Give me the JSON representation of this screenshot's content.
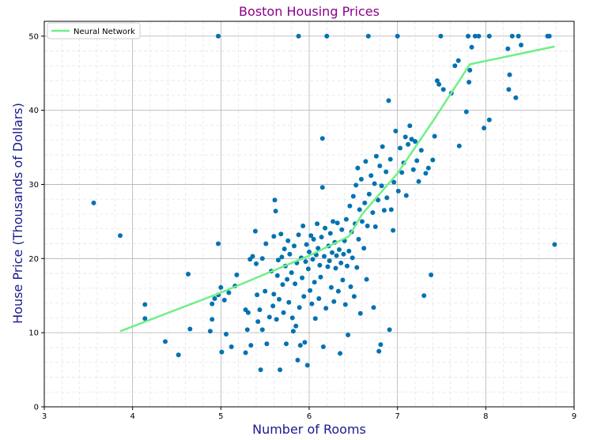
{
  "chart_data": {
    "type": "scatter",
    "title": "Boston Housing Prices",
    "xlabel": "Number of Rooms",
    "ylabel": "House Price (Thousands of Dollars)",
    "xlim": [
      3,
      9
    ],
    "ylim": [
      0,
      52
    ],
    "x_ticks": [
      3,
      4,
      5,
      6,
      7,
      8,
      9
    ],
    "y_ticks": [
      0,
      10,
      20,
      30,
      40,
      50
    ],
    "grid": true,
    "legend_placement": "top-left",
    "colors": {
      "points": "#0072b2",
      "line": "#70ef85",
      "title": "#8b008b",
      "axis_label": "#1a1a8c"
    },
    "series": [
      {
        "type": "scatter",
        "points": [
          [
            3.56,
            27.5
          ],
          [
            3.86,
            23.1
          ],
          [
            4.14,
            13.8
          ],
          [
            4.14,
            11.9
          ],
          [
            4.37,
            8.8
          ],
          [
            4.52,
            7.0
          ],
          [
            4.63,
            17.9
          ],
          [
            4.65,
            10.5
          ],
          [
            4.88,
            10.2
          ],
          [
            4.9,
            13.9
          ],
          [
            4.9,
            11.8
          ],
          [
            4.93,
            14.6
          ],
          [
            4.97,
            15.1
          ],
          [
            4.97,
            22.0
          ],
          [
            4.97,
            50.0
          ],
          [
            5.0,
            16.1
          ],
          [
            5.01,
            7.4
          ],
          [
            5.04,
            14.4
          ],
          [
            5.06,
            9.8
          ],
          [
            5.09,
            15.4
          ],
          [
            5.12,
            8.1
          ],
          [
            5.16,
            16.3
          ],
          [
            5.18,
            17.8
          ],
          [
            5.28,
            7.3
          ],
          [
            5.28,
            13.1
          ],
          [
            5.3,
            10.4
          ],
          [
            5.31,
            12.7
          ],
          [
            5.33,
            19.9
          ],
          [
            5.34,
            8.3
          ],
          [
            5.36,
            20.3
          ],
          [
            5.39,
            23.7
          ],
          [
            5.4,
            19.3
          ],
          [
            5.41,
            15.1
          ],
          [
            5.42,
            11.5
          ],
          [
            5.44,
            13.1
          ],
          [
            5.45,
            5.0
          ],
          [
            5.47,
            10.4
          ],
          [
            5.47,
            20.0
          ],
          [
            5.5,
            15.6
          ],
          [
            5.51,
            22.0
          ],
          [
            5.52,
            8.5
          ],
          [
            5.55,
            12.1
          ],
          [
            5.57,
            18.3
          ],
          [
            5.59,
            13.6
          ],
          [
            5.6,
            15.2
          ],
          [
            5.6,
            23.0
          ],
          [
            5.61,
            27.9
          ],
          [
            5.62,
            26.4
          ],
          [
            5.63,
            11.8
          ],
          [
            5.64,
            17.7
          ],
          [
            5.65,
            19.8
          ],
          [
            5.66,
            14.5
          ],
          [
            5.67,
            5.0
          ],
          [
            5.68,
            23.3
          ],
          [
            5.69,
            20.2
          ],
          [
            5.7,
            16.5
          ],
          [
            5.71,
            12.7
          ],
          [
            5.72,
            21.3
          ],
          [
            5.73,
            19.0
          ],
          [
            5.74,
            8.5
          ],
          [
            5.75,
            17.2
          ],
          [
            5.76,
            22.4
          ],
          [
            5.77,
            14.1
          ],
          [
            5.78,
            20.6
          ],
          [
            5.8,
            18.1
          ],
          [
            5.81,
            12.0
          ],
          [
            5.82,
            10.2
          ],
          [
            5.83,
            21.7
          ],
          [
            5.84,
            16.6
          ],
          [
            5.85,
            10.9
          ],
          [
            5.86,
            19.4
          ],
          [
            5.87,
            6.3
          ],
          [
            5.88,
            23.2
          ],
          [
            5.88,
            50.0
          ],
          [
            5.89,
            13.4
          ],
          [
            5.9,
            8.3
          ],
          [
            5.91,
            20.1
          ],
          [
            5.92,
            17.4
          ],
          [
            5.93,
            24.4
          ],
          [
            5.94,
            14.9
          ],
          [
            5.95,
            8.7
          ],
          [
            5.96,
            19.6
          ],
          [
            5.97,
            21.9
          ],
          [
            5.98,
            5.6
          ],
          [
            5.99,
            18.6
          ],
          [
            6.0,
            20.9
          ],
          [
            6.01,
            15.7
          ],
          [
            6.02,
            23.1
          ],
          [
            6.03,
            13.9
          ],
          [
            6.04,
            19.9
          ],
          [
            6.05,
            22.6
          ],
          [
            6.06,
            16.8
          ],
          [
            6.07,
            11.9
          ],
          [
            6.08,
            20.5
          ],
          [
            6.09,
            24.7
          ],
          [
            6.1,
            21.4
          ],
          [
            6.11,
            14.6
          ],
          [
            6.12,
            19.1
          ],
          [
            6.13,
            17.5
          ],
          [
            6.14,
            22.9
          ],
          [
            6.15,
            36.2
          ],
          [
            6.15,
            29.6
          ],
          [
            6.16,
            8.1
          ],
          [
            6.17,
            20.3
          ],
          [
            6.18,
            24.1
          ],
          [
            6.19,
            13.3
          ],
          [
            6.2,
            50.0
          ],
          [
            6.21,
            18.9
          ],
          [
            6.22,
            21.7
          ],
          [
            6.23,
            19.7
          ],
          [
            6.24,
            23.4
          ],
          [
            6.25,
            16.1
          ],
          [
            6.26,
            20.8
          ],
          [
            6.27,
            25.0
          ],
          [
            6.28,
            14.2
          ],
          [
            6.29,
            22.2
          ],
          [
            6.3,
            18.7
          ],
          [
            6.31,
            20.4
          ],
          [
            6.32,
            24.8
          ],
          [
            6.33,
            15.6
          ],
          [
            6.34,
            21.2
          ],
          [
            6.35,
            7.2
          ],
          [
            6.36,
            19.4
          ],
          [
            6.37,
            23.9
          ],
          [
            6.38,
            17.1
          ],
          [
            6.39,
            20.6
          ],
          [
            6.4,
            22.4
          ],
          [
            6.41,
            13.8
          ],
          [
            6.42,
            25.3
          ],
          [
            6.43,
            19.0
          ],
          [
            6.44,
            9.7
          ],
          [
            6.45,
            21.0
          ],
          [
            6.46,
            27.1
          ],
          [
            6.47,
            16.2
          ],
          [
            6.48,
            23.6
          ],
          [
            6.49,
            20.1
          ],
          [
            6.5,
            28.4
          ],
          [
            6.51,
            14.9
          ],
          [
            6.52,
            24.7
          ],
          [
            6.53,
            29.9
          ],
          [
            6.54,
            18.8
          ],
          [
            6.55,
            32.2
          ],
          [
            6.56,
            22.6
          ],
          [
            6.57,
            26.6
          ],
          [
            6.58,
            12.6
          ],
          [
            6.59,
            30.7
          ],
          [
            6.6,
            25.0
          ],
          [
            6.62,
            21.4
          ],
          [
            6.63,
            27.5
          ],
          [
            6.64,
            33.1
          ],
          [
            6.65,
            17.2
          ],
          [
            6.66,
            24.4
          ],
          [
            6.67,
            50.0
          ],
          [
            6.68,
            28.7
          ],
          [
            6.7,
            31.2
          ],
          [
            6.72,
            26.2
          ],
          [
            6.73,
            13.4
          ],
          [
            6.74,
            30.1
          ],
          [
            6.75,
            24.3
          ],
          [
            6.76,
            33.8
          ],
          [
            6.78,
            27.9
          ],
          [
            6.79,
            7.5
          ],
          [
            6.8,
            32.5
          ],
          [
            6.81,
            8.4
          ],
          [
            6.82,
            29.8
          ],
          [
            6.83,
            35.1
          ],
          [
            6.85,
            26.5
          ],
          [
            6.87,
            31.7
          ],
          [
            6.88,
            28.2
          ],
          [
            6.9,
            41.3
          ],
          [
            6.91,
            10.4
          ],
          [
            6.92,
            33.4
          ],
          [
            6.93,
            26.6
          ],
          [
            6.95,
            23.8
          ],
          [
            6.96,
            30.3
          ],
          [
            6.98,
            37.2
          ],
          [
            7.0,
            50.0
          ],
          [
            7.01,
            29.1
          ],
          [
            7.03,
            34.9
          ],
          [
            7.05,
            31.6
          ],
          [
            7.07,
            32.9
          ],
          [
            7.09,
            36.4
          ],
          [
            7.1,
            28.5
          ],
          [
            7.12,
            35.4
          ],
          [
            7.14,
            37.9
          ],
          [
            7.16,
            36.1
          ],
          [
            7.18,
            32.0
          ],
          [
            7.2,
            35.8
          ],
          [
            7.22,
            33.2
          ],
          [
            7.24,
            30.4
          ],
          [
            7.27,
            34.6
          ],
          [
            7.3,
            15.0
          ],
          [
            7.32,
            31.5
          ],
          [
            7.35,
            32.2
          ],
          [
            7.38,
            17.8
          ],
          [
            7.4,
            33.3
          ],
          [
            7.42,
            36.5
          ],
          [
            7.45,
            44.0
          ],
          [
            7.47,
            43.5
          ],
          [
            7.49,
            50.0
          ],
          [
            7.52,
            42.8
          ],
          [
            7.61,
            42.3
          ],
          [
            7.65,
            46.0
          ],
          [
            7.69,
            46.7
          ],
          [
            7.7,
            35.2
          ],
          [
            7.78,
            39.8
          ],
          [
            7.8,
            50.0
          ],
          [
            7.81,
            43.8
          ],
          [
            7.82,
            45.4
          ],
          [
            7.84,
            48.5
          ],
          [
            7.88,
            50.0
          ],
          [
            7.92,
            50.0
          ],
          [
            7.98,
            37.6
          ],
          [
            8.04,
            38.7
          ],
          [
            8.04,
            50.0
          ],
          [
            8.25,
            48.3
          ],
          [
            8.26,
            42.8
          ],
          [
            8.27,
            44.8
          ],
          [
            8.3,
            50.0
          ],
          [
            8.34,
            41.7
          ],
          [
            8.37,
            50.0
          ],
          [
            8.4,
            48.8
          ],
          [
            8.7,
            50.0
          ],
          [
            8.72,
            50.0
          ],
          [
            8.78,
            21.9
          ]
        ]
      },
      {
        "type": "line",
        "name": "Neural Network",
        "x": [
          3.86,
          5.0,
          6.0,
          6.45,
          6.6,
          7.0,
          7.4,
          7.82,
          8.78
        ],
        "y": [
          10.2,
          15.4,
          20.4,
          23.0,
          26.0,
          31.5,
          38.5,
          46.2,
          48.6
        ]
      }
    ]
  }
}
